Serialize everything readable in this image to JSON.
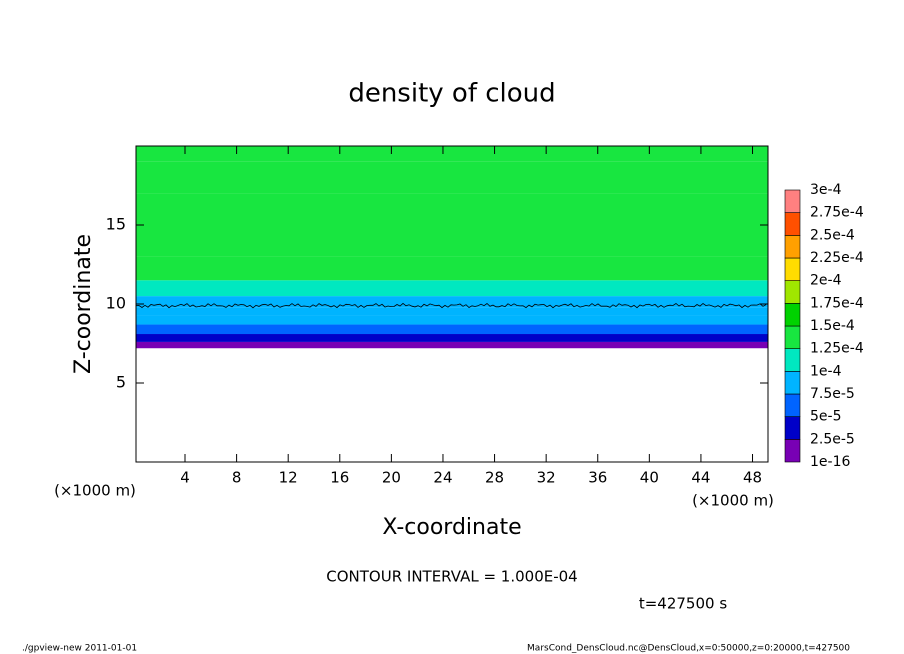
{
  "chart_data": {
    "type": "contour",
    "title": "density of cloud",
    "xlabel": "X-coordinate",
    "ylabel": "Z-coordinate",
    "x_unit": "(×1000 m)",
    "y_unit": "(×1000 m)",
    "xlim": [
      0.2,
      49.2
    ],
    "ylim": [
      0,
      20
    ],
    "xticks": [
      4,
      8,
      12,
      16,
      20,
      24,
      28,
      32,
      36,
      40,
      44,
      48
    ],
    "yticks": [
      5,
      10,
      15
    ],
    "z": [
      7.2,
      7.6,
      8.1,
      8.7,
      9.3,
      9.8,
      10.5,
      11.5,
      13,
      15,
      17,
      19
    ],
    "values": [
      1e-05,
      3.5e-05,
      6e-05,
      8e-05,
      9e-05,
      9.8e-05,
      0.00011,
      0.00013,
      0.00014,
      0.000145,
      0.00014,
      0.00013
    ],
    "contour_z": 9.9,
    "colorbar": {
      "levels": [
        {
          "value": 1e-16,
          "label": "1e-16"
        },
        {
          "value": 2.5e-05,
          "label": "2.5e-5"
        },
        {
          "value": 5e-05,
          "label": "5e-5"
        },
        {
          "value": 7.5e-05,
          "label": "7.5e-5"
        },
        {
          "value": 0.0001,
          "label": "1e-4"
        },
        {
          "value": 0.000125,
          "label": "1.25e-4"
        },
        {
          "value": 0.00015,
          "label": "1.5e-4"
        },
        {
          "value": 0.000175,
          "label": "1.75e-4"
        },
        {
          "value": 0.0002,
          "label": "2e-4"
        },
        {
          "value": 0.000225,
          "label": "2.25e-4"
        },
        {
          "value": 0.00025,
          "label": "2.5e-4"
        },
        {
          "value": 0.000275,
          "label": "2.75e-4"
        },
        {
          "value": 0.0003,
          "label": "3e-4"
        }
      ],
      "colors": [
        "#7800b4",
        "#0000c8",
        "#0064ff",
        "#00b4ff",
        "#00e8c0",
        "#18e640",
        "#00d200",
        "#a0e600",
        "#ffdc00",
        "#ffa000",
        "#ff5000",
        "#ff8080"
      ]
    },
    "annotations": [
      "CONTOUR INTERVAL = 1.000E-04",
      "t=427500 s"
    ],
    "footer_left": "./gpview-new   2011-01-01",
    "footer_right": "MarsCond_DensCloud.nc@DensCloud,x=0:50000,z=0:20000,t=427500"
  }
}
